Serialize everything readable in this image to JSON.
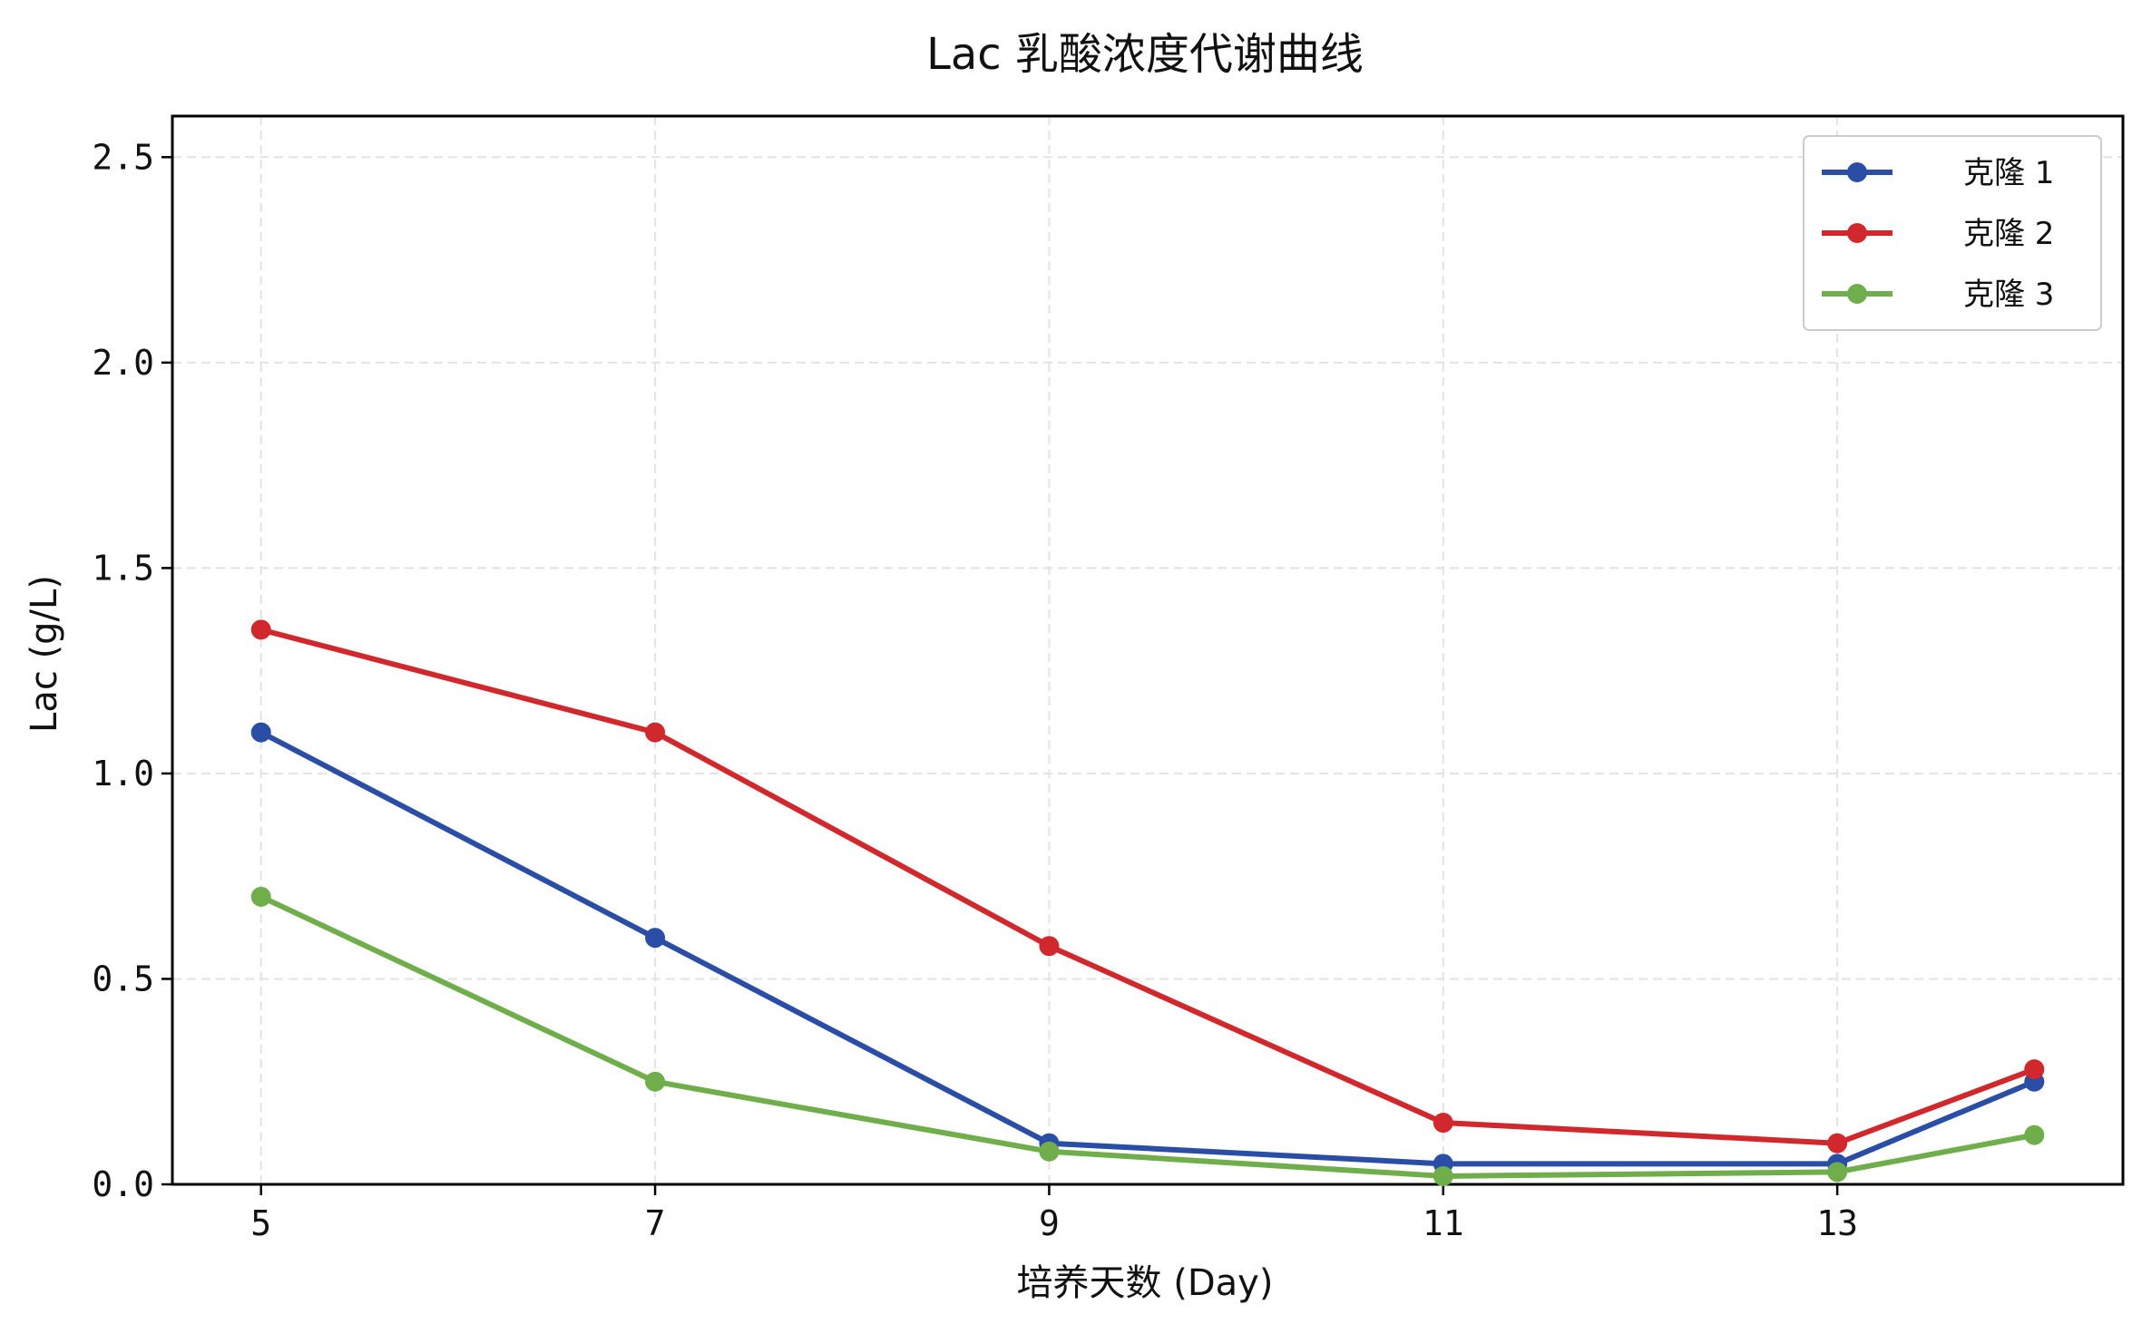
{
  "chart_data": {
    "type": "line",
    "title": "Lac 乳酸浓度代谢曲线",
    "xlabel": "培养天数 (Day)",
    "ylabel": "Lac (g/L)",
    "x": [
      5,
      7,
      9,
      11,
      13,
      14
    ],
    "xticks": [
      5,
      7,
      9,
      11,
      13
    ],
    "xtick_labels": [
      "5",
      "7",
      "9",
      "11",
      "13"
    ],
    "xlim": [
      4.55,
      14.45
    ],
    "yticks": [
      0.0,
      0.5,
      1.0,
      1.5,
      2.0,
      2.5
    ],
    "ytick_labels": [
      "0.0",
      "0.5",
      "1.0",
      "1.5",
      "2.0",
      "2.5"
    ],
    "ylim": [
      0,
      2.6
    ],
    "grid": true,
    "legend_position": "top-right",
    "series": [
      {
        "name": "克隆 1",
        "color": "#2a4ea6",
        "values": [
          1.1,
          0.6,
          0.1,
          0.05,
          0.05,
          0.25
        ]
      },
      {
        "name": "克隆 2",
        "color": "#d0282c",
        "values": [
          1.35,
          1.1,
          0.58,
          0.15,
          0.1,
          0.28
        ]
      },
      {
        "name": "克隆 3",
        "color": "#6fae4b",
        "values": [
          0.7,
          0.25,
          0.08,
          0.02,
          0.03,
          0.12
        ]
      }
    ]
  }
}
